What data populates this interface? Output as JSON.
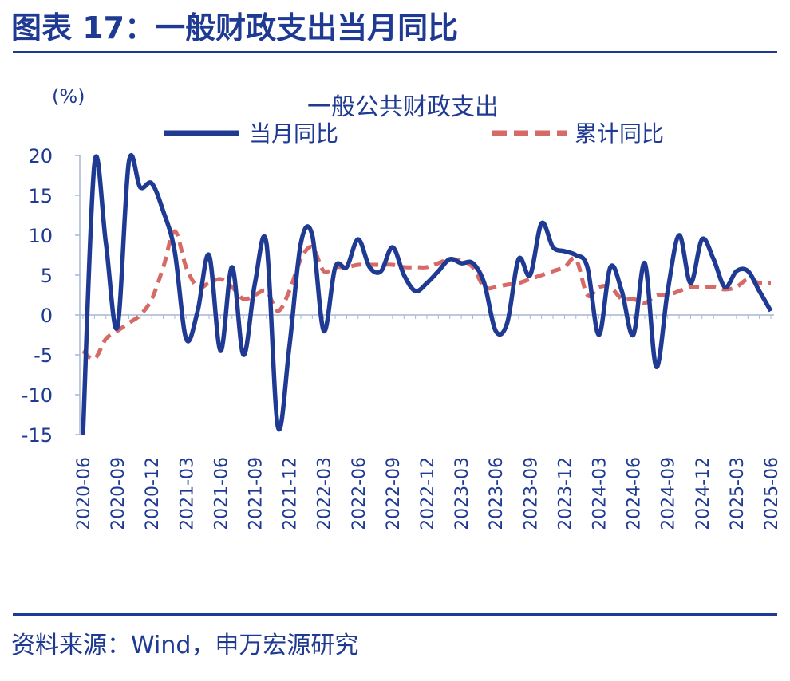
{
  "figure_title": "图表 17：一般财政支出当月同比",
  "source_text": "资料来源：Wind，申万宏源研究",
  "colors": {
    "primary": "#1f3a93",
    "monthly": "#1f3a93",
    "cumulative": "#d66a66"
  },
  "chart_data": {
    "type": "line",
    "title": "一般公共财政支出",
    "unit": "(%)",
    "ylim": [
      -15,
      20
    ],
    "yticks": [
      20,
      15,
      10,
      5,
      0,
      -5,
      -10,
      -15
    ],
    "xtick_labels": [
      "2020-06",
      "2020-09",
      "2020-12",
      "2021-03",
      "2021-06",
      "2021-09",
      "2021-12",
      "2022-03",
      "2022-06",
      "2022-09",
      "2022-12",
      "2023-03",
      "2023-06",
      "2023-09",
      "2023-12",
      "2024-03",
      "2024-06",
      "2024-09",
      "2024-12",
      "2025-03",
      "2025-06"
    ],
    "x": [
      "2020-06",
      "2020-07",
      "2020-08",
      "2020-09",
      "2020-10",
      "2020-11",
      "2020-12",
      "2021-01",
      "2021-02",
      "2021-03",
      "2021-04",
      "2021-05",
      "2021-06",
      "2021-07",
      "2021-08",
      "2021-09",
      "2021-10",
      "2021-11",
      "2021-12",
      "2022-01",
      "2022-02",
      "2022-03",
      "2022-04",
      "2022-05",
      "2022-06",
      "2022-07",
      "2022-08",
      "2022-09",
      "2022-10",
      "2022-11",
      "2022-12",
      "2023-01",
      "2023-02",
      "2023-03",
      "2023-04",
      "2023-05",
      "2023-06",
      "2023-07",
      "2023-08",
      "2023-09",
      "2023-10",
      "2023-11",
      "2023-12",
      "2024-01",
      "2024-02",
      "2024-03",
      "2024-04",
      "2024-05",
      "2024-06",
      "2024-07",
      "2024-08",
      "2024-09",
      "2024-10",
      "2024-11",
      "2024-12",
      "2025-01",
      "2025-02",
      "2025-03",
      "2025-04",
      "2025-05",
      "2025-06"
    ],
    "grid": false,
    "legend_position": "top",
    "series": [
      {
        "name": "当月同比",
        "style": "solid",
        "values": [
          -15.0,
          19.0,
          9.0,
          -1.5,
          19.2,
          16.0,
          16.5,
          13.0,
          8.0,
          -3.0,
          0.5,
          7.5,
          -4.5,
          6.0,
          -5.0,
          4.0,
          9.0,
          -14.0,
          -4.0,
          9.0,
          10.0,
          -2.0,
          6.0,
          6.0,
          9.5,
          6.0,
          5.5,
          8.5,
          5.0,
          3.0,
          4.0,
          5.5,
          7.0,
          6.5,
          6.5,
          4.0,
          -2.0,
          -1.0,
          7.0,
          5.0,
          11.5,
          8.5,
          8.0,
          7.5,
          6.0,
          -2.5,
          6.0,
          3.0,
          -2.5,
          6.5,
          -6.5,
          3.0,
          10.0,
          4.0,
          9.5,
          7.0,
          3.5,
          5.5,
          5.5,
          3.0,
          0.5
        ]
      },
      {
        "name": "累计同比",
        "style": "dashed",
        "values": [
          -4.5,
          -5.5,
          -3.0,
          -2.0,
          -1.0,
          0.0,
          2.0,
          6.0,
          10.5,
          6.0,
          3.5,
          4.0,
          4.5,
          3.5,
          2.0,
          2.5,
          3.0,
          0.5,
          3.0,
          7.0,
          8.5,
          5.5,
          6.0,
          6.0,
          6.3,
          6.3,
          6.3,
          6.3,
          6.0,
          6.0,
          6.0,
          6.5,
          7.0,
          6.8,
          6.0,
          3.5,
          3.5,
          3.8,
          4.0,
          4.5,
          5.0,
          5.5,
          6.0,
          7.0,
          2.5,
          3.5,
          3.5,
          2.0,
          2.0,
          1.5,
          2.5,
          2.5,
          3.0,
          3.5,
          3.5,
          3.5,
          3.2,
          3.5,
          4.5,
          4.0,
          4.0
        ]
      }
    ]
  }
}
